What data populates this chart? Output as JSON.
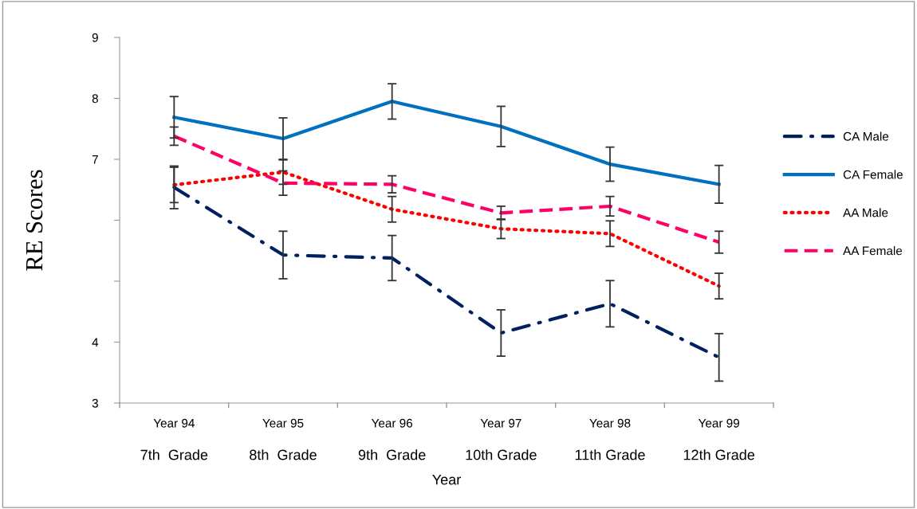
{
  "chart_data": {
    "type": "line",
    "xlabel": "Year",
    "ylabel": "RE Scores",
    "categories": [
      "Year 94\n7th  Grade",
      "Year 95\n8th  Grade",
      "Year 96\n9th  Grade",
      "Year 97\n10th Grade",
      "Year 98\n11th Grade",
      "Year 99\n12th Grade"
    ],
    "series": [
      {
        "name": "CA Male",
        "color": "#002060",
        "line_style": "dashdot",
        "values": [
          6.54,
          5.43,
          5.38,
          4.15,
          4.63,
          3.75
        ],
        "errors": [
          0.35,
          0.39,
          0.37,
          0.38,
          0.38,
          0.39
        ]
      },
      {
        "name": "CA Female",
        "color": "#0070c0",
        "line_style": "solid",
        "values": [
          7.69,
          7.34,
          7.95,
          7.54,
          6.92,
          6.59
        ],
        "errors": [
          0.34,
          0.34,
          0.29,
          0.33,
          0.28,
          0.31
        ]
      },
      {
        "name": "AA Male",
        "color": "#ff0000",
        "line_style": "dotted",
        "values": [
          6.58,
          6.79,
          6.18,
          5.86,
          5.78,
          4.92
        ],
        "errors": [
          0.29,
          0.2,
          0.21,
          0.16,
          0.21,
          0.21
        ]
      },
      {
        "name": "AA Female",
        "color": "#ff0066",
        "line_style": "dashed",
        "values": [
          7.38,
          6.61,
          6.59,
          6.12,
          6.23,
          5.64
        ],
        "errors": [
          0.15,
          0.2,
          0.14,
          0.11,
          0.16,
          0.18
        ]
      }
    ],
    "ylim": [
      3,
      9
    ],
    "yticks": [
      3,
      4,
      {
        "value": 5,
        "label": null
      },
      {
        "value": 6,
        "label": null
      },
      7,
      8,
      9
    ],
    "grid": false,
    "legend": "right",
    "marker": "none"
  }
}
